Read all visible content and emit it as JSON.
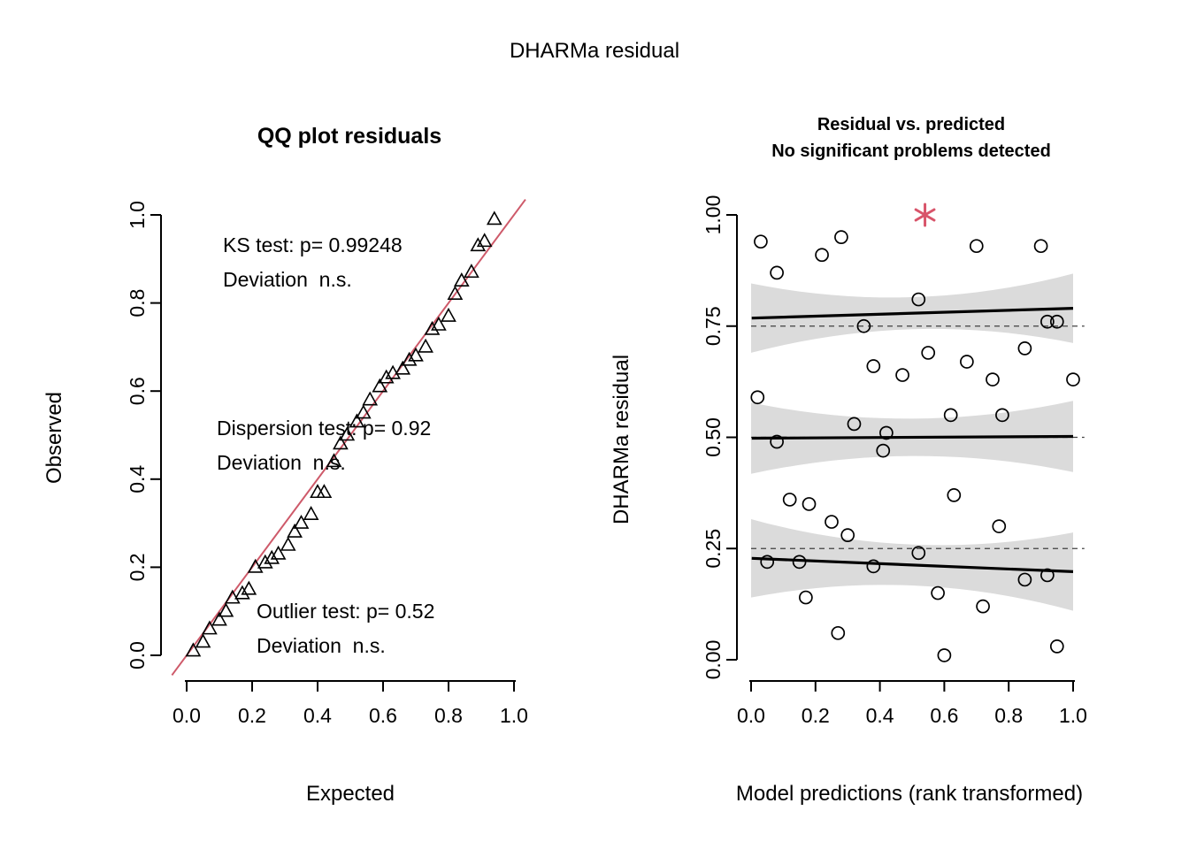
{
  "title": "DHARMa residual",
  "colors": {
    "ref_line": "#CE5A6A",
    "outlier": "#D8546A",
    "band": "#DBDBDB",
    "points": "#000000"
  },
  "chart_data": [
    {
      "type": "scatter",
      "title": "QQ plot residuals",
      "xlabel": "Expected",
      "ylabel": "Observed",
      "xlim": [
        0,
        1
      ],
      "ylim": [
        0,
        1
      ],
      "xticks": [
        "0.0",
        "0.2",
        "0.4",
        "0.6",
        "0.8",
        "1.0"
      ],
      "xtick_values": [
        0,
        0.2,
        0.4,
        0.6,
        0.8,
        1.0
      ],
      "yticks": [
        "0.0",
        "0.2",
        "0.4",
        "0.6",
        "0.8",
        "1.0"
      ],
      "ytick_values": [
        0,
        0.2,
        0.4,
        0.6,
        0.8,
        1.0
      ],
      "marker": "triangle-open",
      "grid": false,
      "ref_line": {
        "from": [
          0,
          0
        ],
        "to": [
          1,
          1
        ]
      },
      "points": {
        "expected": [
          0.02,
          0.05,
          0.07,
          0.1,
          0.12,
          0.14,
          0.17,
          0.19,
          0.21,
          0.24,
          0.26,
          0.28,
          0.31,
          0.33,
          0.35,
          0.38,
          0.4,
          0.42,
          0.45,
          0.47,
          0.49,
          0.52,
          0.54,
          0.56,
          0.59,
          0.61,
          0.63,
          0.66,
          0.68,
          0.7,
          0.73,
          0.75,
          0.77,
          0.8,
          0.82,
          0.84,
          0.87,
          0.89,
          0.91,
          0.94
        ],
        "observed": [
          0.01,
          0.03,
          0.06,
          0.08,
          0.1,
          0.13,
          0.14,
          0.15,
          0.2,
          0.21,
          0.22,
          0.23,
          0.25,
          0.28,
          0.3,
          0.32,
          0.37,
          0.37,
          0.44,
          0.48,
          0.5,
          0.53,
          0.55,
          0.58,
          0.61,
          0.63,
          0.64,
          0.65,
          0.67,
          0.68,
          0.7,
          0.74,
          0.75,
          0.77,
          0.82,
          0.85,
          0.87,
          0.93,
          0.94,
          0.99
        ]
      },
      "annotations": [
        {
          "line1": "KS test: p= 0.99248",
          "line2": "Deviation  n.s."
        },
        {
          "line1": "Dispersion test: p= 0.92",
          "line2": "Deviation  n.s."
        },
        {
          "line1": "Outlier test: p= 0.52",
          "line2": "Deviation  n.s."
        }
      ]
    },
    {
      "type": "scatter",
      "title": "Residual vs. predicted",
      "subtitle": "No significant problems detected",
      "xlabel": "Model predictions (rank transformed)",
      "ylabel": "DHARMa residual",
      "xlim": [
        0,
        1
      ],
      "ylim": [
        0,
        1
      ],
      "xticks": [
        "0.0",
        "0.2",
        "0.4",
        "0.6",
        "0.8",
        "1.0"
      ],
      "xtick_values": [
        0,
        0.2,
        0.4,
        0.6,
        0.8,
        1.0
      ],
      "yticks": [
        "0.00",
        "0.25",
        "0.50",
        "0.75",
        "1.00"
      ],
      "ytick_values": [
        0,
        0.25,
        0.5,
        0.75,
        1.0
      ],
      "marker": "circle-open",
      "grid": false,
      "dashed_lines": [
        0.25,
        0.5,
        0.75
      ],
      "quantile_lines": [
        {
          "quantile": 0.75,
          "start": 0.768,
          "end": 0.79,
          "band_edge_halfwidth": 0.078,
          "band_mid_halfwidth": 0.036
        },
        {
          "quantile": 0.5,
          "start": 0.498,
          "end": 0.502,
          "band_edge_halfwidth": 0.08,
          "band_mid_halfwidth": 0.042
        },
        {
          "quantile": 0.25,
          "start": 0.228,
          "end": 0.198,
          "band_edge_halfwidth": 0.088,
          "band_mid_halfwidth": 0.046
        }
      ],
      "points": {
        "x": [
          0.03,
          0.08,
          0.22,
          0.28,
          0.7,
          0.9,
          0.52,
          0.92,
          0.95,
          0.35,
          0.38,
          0.47,
          0.55,
          0.67,
          0.75,
          0.85,
          1.0,
          0.02,
          0.62,
          0.78,
          0.08,
          0.32,
          0.41,
          0.42,
          0.12,
          0.18,
          0.63,
          0.25,
          0.3,
          0.77,
          0.05,
          0.15,
          0.38,
          0.52,
          0.85,
          0.92,
          0.17,
          0.58,
          0.72,
          0.27,
          0.6,
          0.95
        ],
        "y": [
          0.94,
          0.87,
          0.91,
          0.95,
          0.93,
          0.93,
          0.81,
          0.76,
          0.76,
          0.75,
          0.66,
          0.64,
          0.69,
          0.67,
          0.63,
          0.7,
          0.63,
          0.59,
          0.55,
          0.55,
          0.49,
          0.53,
          0.47,
          0.51,
          0.36,
          0.35,
          0.37,
          0.31,
          0.28,
          0.3,
          0.22,
          0.22,
          0.21,
          0.24,
          0.18,
          0.19,
          0.14,
          0.15,
          0.12,
          0.06,
          0.01,
          0.03
        ]
      },
      "outlier": {
        "x": 0.54,
        "y": 1.0,
        "marker": "asterisk"
      }
    }
  ]
}
